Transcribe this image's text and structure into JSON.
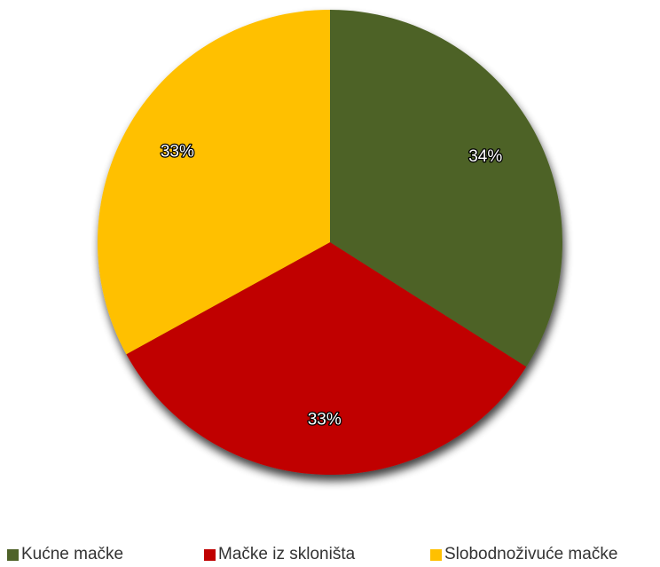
{
  "chart_data": {
    "type": "pie",
    "slices": [
      {
        "label": "Kućne mačke",
        "value": 34,
        "value_label": "34%",
        "color": "#4e6228"
      },
      {
        "label": "Mačke iz skloništa",
        "value": 33,
        "value_label": "33%",
        "color": "#c00000"
      },
      {
        "label": "Slobodnoživuće mačke",
        "value": 33,
        "value_label": "33%",
        "color": "#ffc000"
      }
    ],
    "start": "top",
    "direction": "clockwise",
    "legend_position": "bottom"
  }
}
